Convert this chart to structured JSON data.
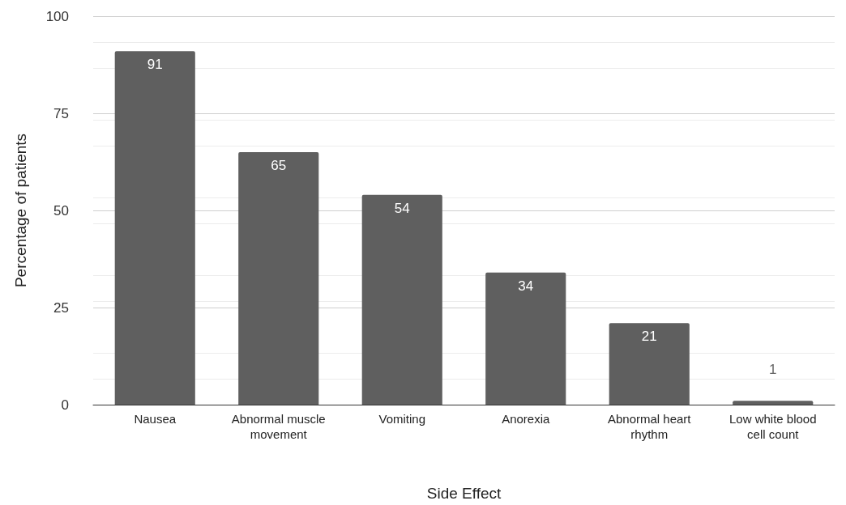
{
  "chart_data": {
    "type": "bar",
    "xlabel": "Side Effect",
    "ylabel": "Percentage of patients",
    "categories": [
      "Nausea",
      "Abnormal muscle movement",
      "Vomiting",
      "Anorexia",
      "Abnormal heart rhythm",
      "Low white blood cell count"
    ],
    "values": [
      91,
      65,
      54,
      34,
      21,
      1
    ],
    "color": "#5f5f5f",
    "ylim": [
      0,
      100
    ],
    "yticks": [
      0,
      25,
      50,
      75,
      100
    ],
    "grid": true,
    "data_labels": true
  }
}
